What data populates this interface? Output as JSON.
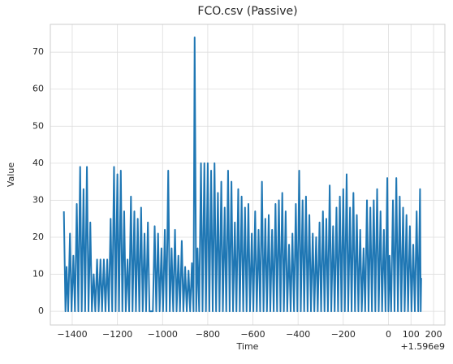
{
  "chart_data": {
    "type": "line",
    "title": "FCO.csv (Passive)",
    "xlabel": "Time",
    "ylabel": "Value",
    "x_offset_label": "+1.596e9",
    "x": [
      -1437,
      -1430,
      -1425,
      -1418,
      -1410,
      -1403,
      -1395,
      -1388,
      -1380,
      -1373,
      -1365,
      -1358,
      -1350,
      -1343,
      -1335,
      -1328,
      -1320,
      -1313,
      -1305,
      -1298,
      -1290,
      -1283,
      -1275,
      -1268,
      -1260,
      -1253,
      -1245,
      -1238,
      -1230,
      -1223,
      -1215,
      -1208,
      -1200,
      -1193,
      -1185,
      -1178,
      -1170,
      -1163,
      -1155,
      -1148,
      -1140,
      -1133,
      -1125,
      -1118,
      -1110,
      -1103,
      -1095,
      -1088,
      -1080,
      -1073,
      -1065,
      -1058,
      -1050,
      -1043,
      -1035,
      -1028,
      -1020,
      -1013,
      -1005,
      -998,
      -990,
      -983,
      -975,
      -968,
      -960,
      -953,
      -945,
      -938,
      -930,
      -923,
      -915,
      -908,
      -900,
      -893,
      -885,
      -878,
      -870,
      -863,
      -858,
      -851,
      -845,
      -838,
      -830,
      -823,
      -815,
      -808,
      -800,
      -793,
      -785,
      -778,
      -770,
      -763,
      -755,
      -748,
      -740,
      -733,
      -725,
      -718,
      -710,
      -703,
      -695,
      -688,
      -680,
      -673,
      -665,
      -658,
      -650,
      -643,
      -635,
      -628,
      -620,
      -613,
      -605,
      -598,
      -590,
      -583,
      -575,
      -568,
      -560,
      -553,
      -545,
      -538,
      -530,
      -523,
      -515,
      -508,
      -500,
      -493,
      -485,
      -478,
      -470,
      -463,
      -455,
      -448,
      -440,
      -433,
      -425,
      -418,
      -410,
      -403,
      -395,
      -388,
      -380,
      -373,
      -365,
      -358,
      -350,
      -343,
      -335,
      -328,
      -320,
      -313,
      -305,
      -298,
      -290,
      -283,
      -275,
      -268,
      -260,
      -253,
      -245,
      -238,
      -230,
      -223,
      -215,
      -208,
      -200,
      -193,
      -185,
      -178,
      -170,
      -163,
      -155,
      -148,
      -140,
      -133,
      -125,
      -118,
      -110,
      -103,
      -95,
      -88,
      -80,
      -73,
      -65,
      -58,
      -50,
      -43,
      -35,
      -28,
      -20,
      -13,
      -5,
      0,
      5,
      12,
      20,
      27,
      35,
      42,
      50,
      57,
      65,
      72,
      80,
      87,
      95,
      102,
      110,
      117,
      125,
      132,
      140,
      143,
      145
    ],
    "series": [
      {
        "name": "Value",
        "color": "#1f77b4",
        "values": [
          27,
          0,
          12,
          0,
          21,
          0,
          15,
          0,
          29,
          0,
          39,
          0,
          33,
          0,
          39,
          0,
          24,
          0,
          10,
          0,
          14,
          0,
          14,
          0,
          14,
          0,
          14,
          0,
          25,
          0,
          39,
          0,
          37,
          0,
          38,
          0,
          27,
          0,
          14,
          0,
          31,
          0,
          27,
          0,
          25,
          0,
          28,
          0,
          21,
          0,
          24,
          0,
          0,
          0,
          23,
          0,
          21,
          0,
          17,
          0,
          22,
          0,
          38,
          0,
          17,
          0,
          22,
          0,
          15,
          0,
          19,
          0,
          12,
          0,
          11,
          0,
          13,
          0,
          74,
          0,
          17,
          0,
          40,
          0,
          40,
          0,
          40,
          0,
          38,
          0,
          40,
          0,
          32,
          0,
          35,
          0,
          28,
          0,
          38,
          0,
          35,
          0,
          24,
          0,
          33,
          0,
          31,
          0,
          28,
          0,
          29,
          0,
          21,
          0,
          27,
          0,
          22,
          0,
          35,
          0,
          25,
          0,
          26,
          0,
          22,
          0,
          29,
          0,
          30,
          0,
          32,
          0,
          27,
          0,
          18,
          0,
          21,
          0,
          29,
          0,
          38,
          0,
          30,
          0,
          31,
          0,
          26,
          0,
          21,
          0,
          20,
          0,
          24,
          0,
          27,
          0,
          25,
          0,
          34,
          0,
          23,
          0,
          28,
          0,
          31,
          0,
          33,
          0,
          37,
          0,
          28,
          0,
          32,
          0,
          26,
          0,
          22,
          0,
          17,
          0,
          30,
          0,
          28,
          0,
          30,
          0,
          33,
          0,
          27,
          0,
          22,
          0,
          36,
          0,
          15,
          0,
          30,
          0,
          36,
          0,
          31,
          0,
          28,
          0,
          26,
          0,
          23,
          0,
          18,
          0,
          27,
          0,
          33,
          0,
          9
        ]
      }
    ],
    "xlim": [
      -1497,
      250
    ],
    "xticks": [
      {
        "value": -1400,
        "label": "−1400"
      },
      {
        "value": -1200,
        "label": "−1200"
      },
      {
        "value": -1000,
        "label": "−1000"
      },
      {
        "value": -800,
        "label": "−800"
      },
      {
        "value": -600,
        "label": "−600"
      },
      {
        "value": -400,
        "label": "−400"
      },
      {
        "value": -200,
        "label": "−200"
      },
      0,
      100,
      200
    ],
    "ylim": [
      -3.7,
      77.5
    ],
    "yticks": [
      0,
      10,
      20,
      30,
      40,
      50,
      60,
      70
    ],
    "grid": true
  }
}
